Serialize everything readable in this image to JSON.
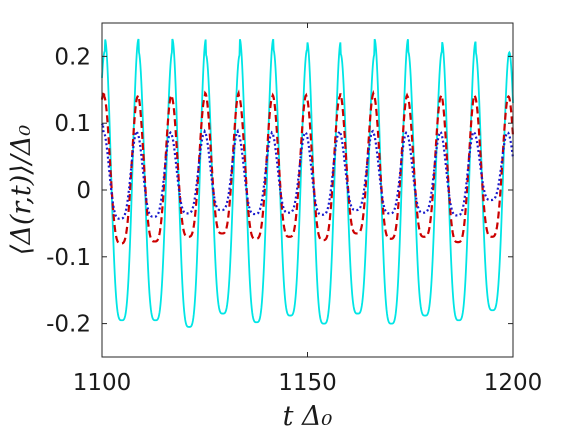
{
  "chart_data": {
    "type": "line",
    "xlabel": "t Δ₀",
    "ylabel": "⟨Δ(r,t)⟩/Δ₀",
    "xlim": [
      1100,
      1200
    ],
    "ylim": [
      -0.25,
      0.25
    ],
    "x_ticks": [
      "1100",
      "1150",
      "1200"
    ],
    "y_ticks": [
      "0.2",
      "0.1",
      "0",
      "-0.1",
      "-0.2"
    ],
    "grid": false,
    "legend": "none",
    "period": 8.2,
    "series": [
      {
        "color": "#00e5e5",
        "style": "solid",
        "phase": 1100.7,
        "peaks": [
          0.208,
          0.226,
          0.207,
          0.226,
          0.202,
          0.226,
          0.21,
          0.222,
          0.203,
          0.226,
          0.207,
          0.222,
          0.206
        ],
        "troughs": [
          -0.12,
          -0.195,
          -0.195,
          -0.205,
          -0.185,
          -0.198,
          -0.188,
          -0.2,
          -0.185,
          -0.2,
          -0.188,
          -0.195,
          -0.18
        ]
      },
      {
        "color": "#cc0000",
        "style": "dashed",
        "phase": 1100.5,
        "peaks": [
          0.148,
          0.14,
          0.142,
          0.14,
          0.145,
          0.14,
          0.142,
          0.14,
          0.145,
          0.142,
          0.14,
          0.142,
          0.14
        ],
        "troughs": [
          -0.05,
          -0.08,
          -0.077,
          -0.07,
          -0.065,
          -0.073,
          -0.07,
          -0.075,
          -0.065,
          -0.073,
          -0.07,
          -0.078,
          -0.07
        ]
      },
      {
        "color": "#1a1acc",
        "style": "dotted",
        "phase": 1100.3,
        "peaks": [
          0.1,
          0.088,
          0.086,
          0.085,
          0.088,
          0.084,
          0.086,
          0.086,
          0.088,
          0.086,
          0.085,
          0.087,
          0.086
        ],
        "troughs": [
          -0.03,
          -0.043,
          -0.04,
          -0.035,
          -0.03,
          -0.036,
          -0.034,
          -0.037,
          -0.03,
          -0.035,
          -0.034,
          -0.038,
          -0.015
        ]
      }
    ]
  }
}
